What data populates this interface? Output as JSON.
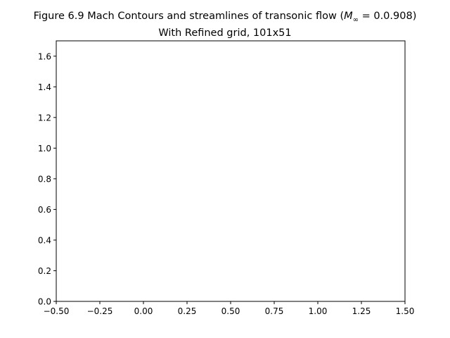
{
  "chart_data": {
    "type": "line",
    "title_line1": "Figure 6.9 Mach Contours and streamlines of transonic flow (",
    "title_math": "M",
    "title_sub": "∞",
    "title_eq": " = 0.0.908)",
    "title_line2": "With Refined grid, 101x51",
    "xlim": [
      -0.5,
      1.5
    ],
    "ylim": [
      0.0,
      1.7
    ],
    "xticks": [
      -0.5,
      -0.25,
      0.0,
      0.25,
      0.5,
      0.75,
      1.0,
      1.25,
      1.5
    ],
    "xtick_labels": [
      "−0.50",
      "−0.25",
      "0.00",
      "0.25",
      "0.50",
      "0.75",
      "1.00",
      "1.25",
      "1.50"
    ],
    "yticks": [
      0.0,
      0.2,
      0.4,
      0.6,
      0.8,
      1.0,
      1.2,
      1.4,
      1.6
    ],
    "ytick_labels": [
      "0.0",
      "0.2",
      "0.4",
      "0.6",
      "0.8",
      "1.0",
      "1.2",
      "1.4",
      "1.6"
    ],
    "series": [],
    "grid": false
  }
}
